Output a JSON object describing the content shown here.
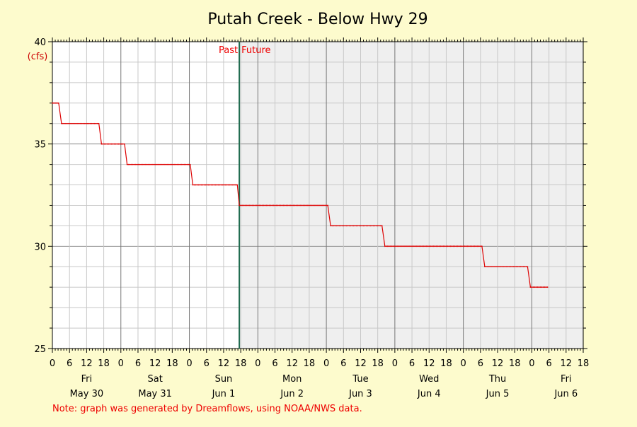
{
  "chart_data": {
    "type": "line",
    "title": "Putah Creek - Below Hwy 29",
    "yunit": "(cfs)",
    "ylim": [
      25,
      40
    ],
    "yticks": [
      25,
      30,
      35,
      40
    ],
    "xlim_hours": [
      0,
      186
    ],
    "hour_ticks": [
      "0",
      "6",
      "12",
      "18",
      "0",
      "6",
      "12",
      "18",
      "0",
      "6",
      "12",
      "18",
      "0",
      "6",
      "12",
      "18",
      "0",
      "6",
      "12",
      "18",
      "0",
      "6",
      "12",
      "18",
      "0",
      "6",
      "12",
      "18",
      "0",
      "6",
      "12",
      "18"
    ],
    "days": [
      {
        "weekday": "Fri",
        "date": "May 30"
      },
      {
        "weekday": "Sat",
        "date": "May 31"
      },
      {
        "weekday": "Sun",
        "date": "Jun 1"
      },
      {
        "weekday": "Mon",
        "date": "Jun 2"
      },
      {
        "weekday": "Tue",
        "date": "Jun 3"
      },
      {
        "weekday": "Wed",
        "date": "Jun 4"
      },
      {
        "weekday": "Thu",
        "date": "Jun 5"
      },
      {
        "weekday": "Fri",
        "date": "Jun 6"
      }
    ],
    "now_hour": 65.5,
    "past_label": "Past",
    "future_label": "Future",
    "series": [
      {
        "x_hours": [
          0,
          2.2,
          3.2,
          16.3,
          17.2,
          25.3,
          26.2,
          48.3,
          49.2,
          64.8,
          65.5,
          96.5,
          97.5,
          115.5,
          116.5,
          150.5,
          151.5,
          166.5,
          167.5,
          173.5
        ],
        "values": [
          37,
          37,
          36,
          36,
          35,
          35,
          34,
          34,
          33,
          33,
          32,
          32,
          31,
          31,
          30,
          30,
          29,
          29,
          28,
          28
        ],
        "color": "#dd0000"
      }
    ],
    "note": "Note: graph was generated by Dreamflows, using NOAA/NWS data."
  }
}
